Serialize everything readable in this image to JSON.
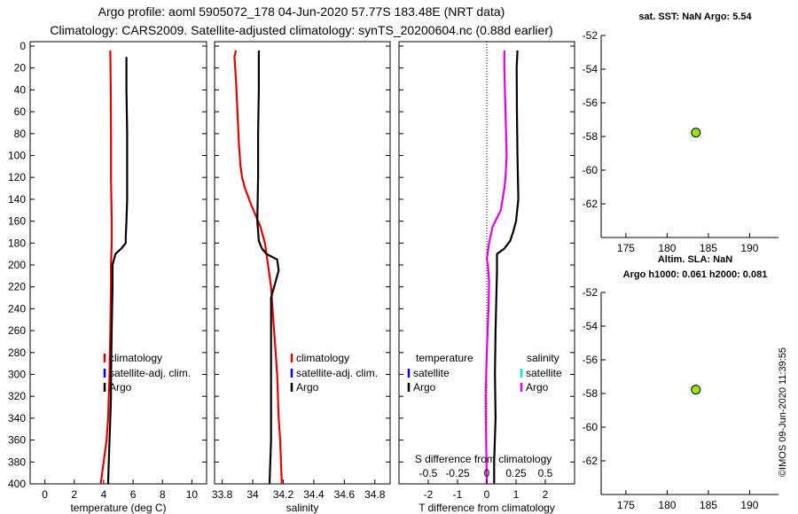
{
  "header": {
    "title_line1": "Argo profile: aoml 5905072_178 04-Jun-2020 57.77S 183.48E (NRT data)",
    "title_line2": "Climatology: CARS2009. Satellite-adjusted climatology: synTS_20200604.nc (0.88d earlier)"
  },
  "watermark": "©IMOS 09-Jun-2020 11:39:55",
  "colors": {
    "climatology": "#e60000",
    "satellite": "#0000ff",
    "satellite_s": "#00e5e5",
    "argo": "#000000",
    "salinity_diff": "#e600e6",
    "marker_fill": "#99e600"
  },
  "chart_data": [
    {
      "id": "temperature",
      "type": "line",
      "xlabel": "temperature (deg C)",
      "ylabel": "",
      "xlim": [
        -1,
        11
      ],
      "ylim": [
        400,
        0
      ],
      "xticks": [
        0,
        2,
        4,
        6,
        8,
        10
      ],
      "xtick_labels": [
        "0",
        "2",
        "4",
        "6",
        "8",
        "10"
      ],
      "yticks": [
        0,
        20,
        40,
        60,
        80,
        100,
        120,
        140,
        160,
        180,
        200,
        220,
        240,
        260,
        280,
        300,
        320,
        340,
        360,
        380,
        400
      ],
      "ytick_labels": [
        "0",
        "20",
        "40",
        "60",
        "80",
        "100",
        "120",
        "140",
        "160",
        "180",
        "200",
        "220",
        "240",
        "260",
        "280",
        "300",
        "320",
        "340",
        "360",
        "380",
        "400"
      ],
      "legend": [
        "climatology",
        "satellite-adj. clim.",
        "Argo"
      ],
      "series": [
        {
          "name": "climatology",
          "color": "#e60000",
          "x": [
            4.45,
            4.48,
            4.5,
            4.5,
            4.55,
            4.55,
            4.5,
            4.5,
            4.45,
            4.4,
            4.3,
            4.2,
            4.0,
            3.8
          ],
          "y": [
            4,
            40,
            80,
            120,
            160,
            180,
            200,
            220,
            260,
            300,
            340,
            360,
            380,
            400
          ]
        },
        {
          "name": "Argo",
          "color": "#000000",
          "x": [
            5.55,
            5.55,
            5.6,
            5.6,
            5.6,
            5.55,
            5.5,
            5.5,
            5.2,
            4.8,
            4.6,
            4.6,
            4.55,
            4.5,
            4.5,
            4.45,
            4.35,
            4.3
          ],
          "y": [
            10,
            40,
            80,
            120,
            140,
            160,
            175,
            180,
            185,
            190,
            200,
            220,
            260,
            300,
            320,
            340,
            380,
            400
          ]
        }
      ]
    },
    {
      "id": "salinity",
      "type": "line",
      "xlabel": "salinity",
      "ylabel": "",
      "xlim": [
        33.75,
        34.9
      ],
      "ylim": [
        400,
        0
      ],
      "xticks": [
        33.8,
        34.0,
        34.2,
        34.4,
        34.6,
        34.8
      ],
      "xtick_labels": [
        "33.8",
        "34",
        "34.2",
        "34.4",
        "34.6",
        "34.8"
      ],
      "legend": [
        "climatology",
        "satellite-adj. clim.",
        "Argo"
      ],
      "series": [
        {
          "name": "climatology",
          "color": "#e60000",
          "x": [
            33.89,
            33.88,
            33.89,
            33.9,
            33.91,
            33.92,
            33.93,
            33.95,
            33.99,
            34.05,
            34.08,
            34.1,
            34.12,
            34.13,
            34.14,
            34.15,
            34.16,
            34.17,
            34.18,
            34.19
          ],
          "y": [
            4,
            10,
            30,
            60,
            90,
            110,
            120,
            130,
            145,
            165,
            180,
            200,
            220,
            240,
            260,
            280,
            300,
            340,
            360,
            400
          ]
        },
        {
          "name": "Argo",
          "color": "#000000",
          "x": [
            34.04,
            34.04,
            34.035,
            34.035,
            34.03,
            34.04,
            34.06,
            34.09,
            34.16,
            34.17,
            34.15,
            34.12,
            34.12,
            34.12,
            34.12,
            34.11
          ],
          "y": [
            4,
            40,
            80,
            120,
            160,
            178,
            185,
            190,
            195,
            205,
            215,
            230,
            280,
            320,
            360,
            400
          ]
        }
      ]
    },
    {
      "id": "difference",
      "type": "line",
      "xlabel": "T difference from climatology",
      "x2label": "S difference from climatology",
      "xlim": [
        -3,
        3
      ],
      "x2lim": [
        -0.75,
        0.75
      ],
      "ylim": [
        400,
        0
      ],
      "xticks": [
        -2,
        -1,
        0,
        1,
        2
      ],
      "xtick_labels": [
        "-2",
        "-1",
        "0",
        "1",
        "2"
      ],
      "x2ticks": [
        -0.5,
        -0.25,
        0,
        0.25,
        0.5
      ],
      "x2tick_labels": [
        "-0.5",
        "-0.25",
        "0",
        "0.25",
        "0.5"
      ],
      "legend_temperature": {
        "title": "temperature",
        "items": [
          "satellite",
          "Argo"
        ]
      },
      "legend_salinity": {
        "title": "salinity",
        "items": [
          "satellite",
          "Argo"
        ]
      },
      "series": [
        {
          "name": "T difference (Argo)",
          "color": "#000000",
          "axis": "T",
          "x": [
            1.05,
            1.02,
            1.03,
            1.05,
            1.08,
            1.0,
            0.9,
            0.8,
            0.6,
            0.35,
            0.35,
            0.3,
            0.28,
            0.3,
            0.25,
            0.25
          ],
          "y": [
            4,
            20,
            60,
            100,
            140,
            160,
            170,
            178,
            185,
            190,
            205,
            260,
            300,
            340,
            380,
            400
          ]
        },
        {
          "name": "S difference (Argo)",
          "color": "#e600e6",
          "axis": "S",
          "x": [
            0.15,
            0.15,
            0.16,
            0.17,
            0.16,
            0.15,
            0.12,
            0.05,
            0.02,
            0.0,
            0.01,
            0.02,
            0.015,
            0.0,
            -0.01,
            -0.005,
            0.0
          ],
          "y": [
            4,
            20,
            60,
            100,
            120,
            130,
            150,
            165,
            180,
            195,
            200,
            215,
            240,
            280,
            320,
            360,
            400
          ]
        }
      ]
    },
    {
      "id": "sst_location",
      "type": "scatter",
      "title": "sat. SST: NaN Argo: 5.54",
      "xlim": [
        172,
        193.5
      ],
      "ylim": [
        -64,
        -52
      ],
      "xticks": [
        175,
        180,
        185,
        190
      ],
      "xtick_labels": [
        "175",
        "180",
        "185",
        "190"
      ],
      "yticks": [
        -52,
        -54,
        -56,
        -58,
        -60,
        -62
      ],
      "ytick_labels": [
        "-52",
        "-54",
        "-56",
        "-58",
        "-60",
        "-62"
      ],
      "points": [
        {
          "x": 183.48,
          "y": -57.77
        }
      ]
    },
    {
      "id": "sla_location",
      "type": "scatter",
      "title": "Altim. SLA: NaN",
      "subtitle": "Argo h1000: 0.061 h2000: 0.081",
      "xlim": [
        172,
        193.5
      ],
      "ylim": [
        -64,
        -52
      ],
      "xticks": [
        175,
        180,
        185,
        190
      ],
      "xtick_labels": [
        "175",
        "180",
        "185",
        "190"
      ],
      "yticks": [
        -52,
        -54,
        -56,
        -58,
        -60,
        -62
      ],
      "ytick_labels": [
        "-52",
        "-54",
        "-56",
        "-58",
        "-60",
        "-62"
      ],
      "points": [
        {
          "x": 183.48,
          "y": -57.77
        }
      ]
    }
  ]
}
